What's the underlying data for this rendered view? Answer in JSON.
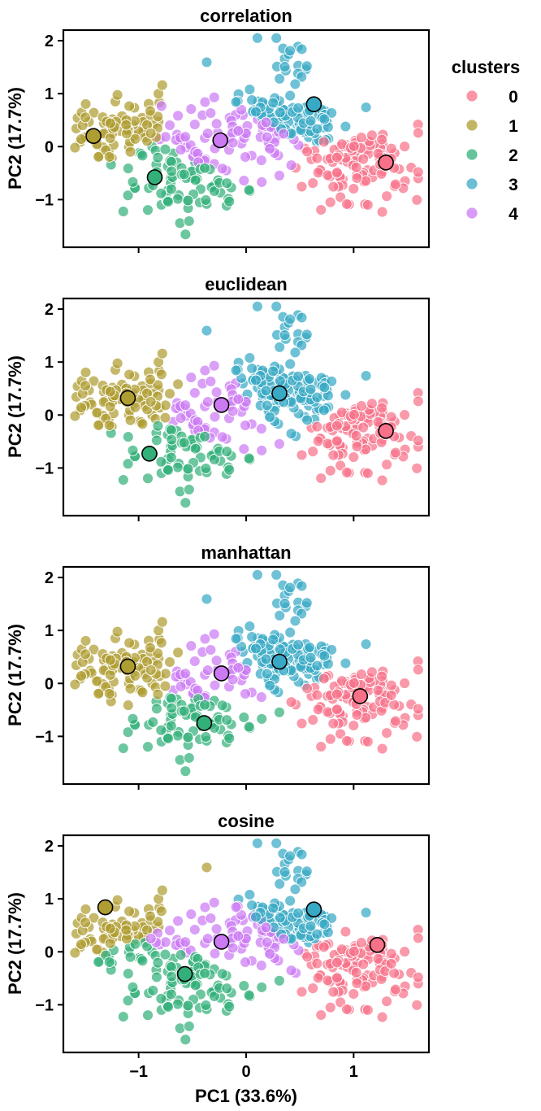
{
  "figure": {
    "xlabel": "PC1 (33.6%)",
    "ylabel": "PC2 (17.7%)",
    "legend_title": "clusters",
    "legend_placement": "outside-right-of-top-panel"
  },
  "colors": {
    "0": "#f77189",
    "1": "#ae9d31",
    "2": "#33b07a",
    "3": "#38a9c5",
    "4": "#cc7af4"
  },
  "chart_data": [
    {
      "type": "scatter",
      "title": "correlation",
      "xlabel": "",
      "ylabel": "PC2 (17.7%)",
      "xlim": [
        -1.7,
        1.7
      ],
      "ylim": [
        -1.9,
        2.2
      ],
      "xticks": [
        -1,
        0,
        1
      ],
      "yticks": [
        -1,
        0,
        1,
        2
      ],
      "centers": [
        {
          "cluster": "0",
          "x": 1.3,
          "y": -0.3
        },
        {
          "cluster": "1",
          "x": -1.42,
          "y": 0.2
        },
        {
          "cluster": "2",
          "x": -0.85,
          "y": -0.58
        },
        {
          "cluster": "3",
          "x": 0.63,
          "y": 0.8
        },
        {
          "cluster": "4",
          "x": -0.24,
          "y": 0.12
        }
      ]
    },
    {
      "type": "scatter",
      "title": "euclidean",
      "xlabel": "",
      "ylabel": "PC2 (17.7%)",
      "xlim": [
        -1.7,
        1.7
      ],
      "ylim": [
        -1.9,
        2.2
      ],
      "xticks": [
        -1,
        0,
        1
      ],
      "yticks": [
        -1,
        0,
        1,
        2
      ],
      "centers": [
        {
          "cluster": "0",
          "x": 1.3,
          "y": -0.3
        },
        {
          "cluster": "1",
          "x": -1.1,
          "y": 0.32
        },
        {
          "cluster": "2",
          "x": -0.9,
          "y": -0.73
        },
        {
          "cluster": "3",
          "x": 0.31,
          "y": 0.41
        },
        {
          "cluster": "4",
          "x": -0.23,
          "y": 0.19
        }
      ]
    },
    {
      "type": "scatter",
      "title": "manhattan",
      "xlabel": "",
      "ylabel": "PC2 (17.7%)",
      "xlim": [
        -1.7,
        1.7
      ],
      "ylim": [
        -1.9,
        2.2
      ],
      "xticks": [
        -1,
        0,
        1
      ],
      "yticks": [
        -1,
        0,
        1,
        2
      ],
      "centers": [
        {
          "cluster": "0",
          "x": 1.06,
          "y": -0.24
        },
        {
          "cluster": "1",
          "x": -1.1,
          "y": 0.32
        },
        {
          "cluster": "2",
          "x": -0.39,
          "y": -0.75
        },
        {
          "cluster": "3",
          "x": 0.31,
          "y": 0.41
        },
        {
          "cluster": "4",
          "x": -0.23,
          "y": 0.19
        }
      ]
    },
    {
      "type": "scatter",
      "title": "cosine",
      "xlabel": "PC1 (33.6%)",
      "ylabel": "PC2 (17.7%)",
      "xlim": [
        -1.7,
        1.7
      ],
      "ylim": [
        -1.9,
        2.2
      ],
      "xticks": [
        -1,
        0,
        1
      ],
      "yticks": [
        -1,
        0,
        1,
        2
      ],
      "centers": [
        {
          "cluster": "0",
          "x": 1.22,
          "y": 0.13
        },
        {
          "cluster": "1",
          "x": -1.31,
          "y": 0.84
        },
        {
          "cluster": "2",
          "x": -0.57,
          "y": -0.42
        },
        {
          "cluster": "3",
          "x": 0.63,
          "y": 0.8
        },
        {
          "cluster": "4",
          "x": -0.23,
          "y": 0.19
        }
      ]
    }
  ]
}
